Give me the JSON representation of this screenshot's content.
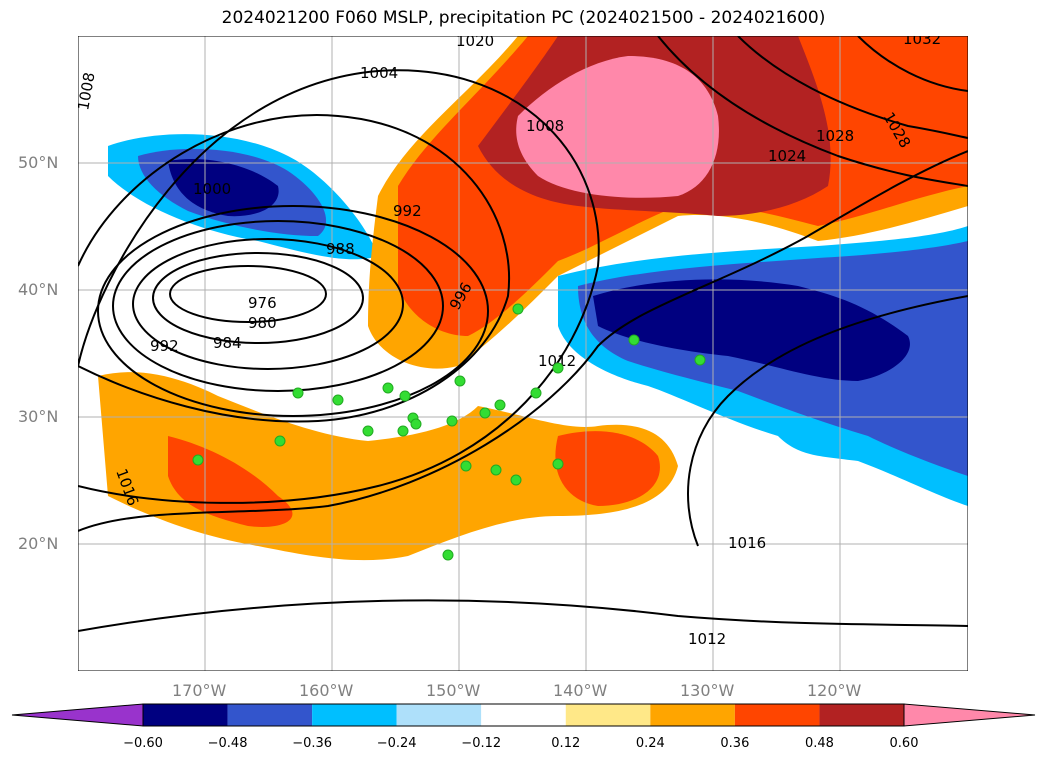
{
  "title": "2024021200 F060 MSLP, precipitation PC (2024021500 - 2024021600)",
  "lat_labels": [
    "50°N",
    "40°N",
    "30°N",
    "20°N"
  ],
  "lon_labels": [
    "170°W",
    "160°W",
    "150°W",
    "140°W",
    "130°W",
    "120°W"
  ],
  "isobar_labels": [
    "1020",
    "1004",
    "1008",
    "1000",
    "992",
    "988",
    "976",
    "980",
    "984",
    "992",
    "996",
    "1008",
    "1012",
    "1016",
    "1016",
    "1012",
    "1024",
    "1028",
    "1028",
    "1032"
  ],
  "colorbar": {
    "colors": [
      "#9933cc",
      "#000080",
      "#3355cc",
      "#00bfff",
      "#aee0fa",
      "#ffffff",
      "#ffe888",
      "#ffa500",
      "#ff4500",
      "#b22222",
      "#ff88aa"
    ],
    "tick_labels": [
      "−0.60",
      "−0.48",
      "−0.36",
      "−0.24",
      "−0.12",
      "0.12",
      "0.24",
      "0.36",
      "0.48",
      "0.60"
    ]
  }
}
